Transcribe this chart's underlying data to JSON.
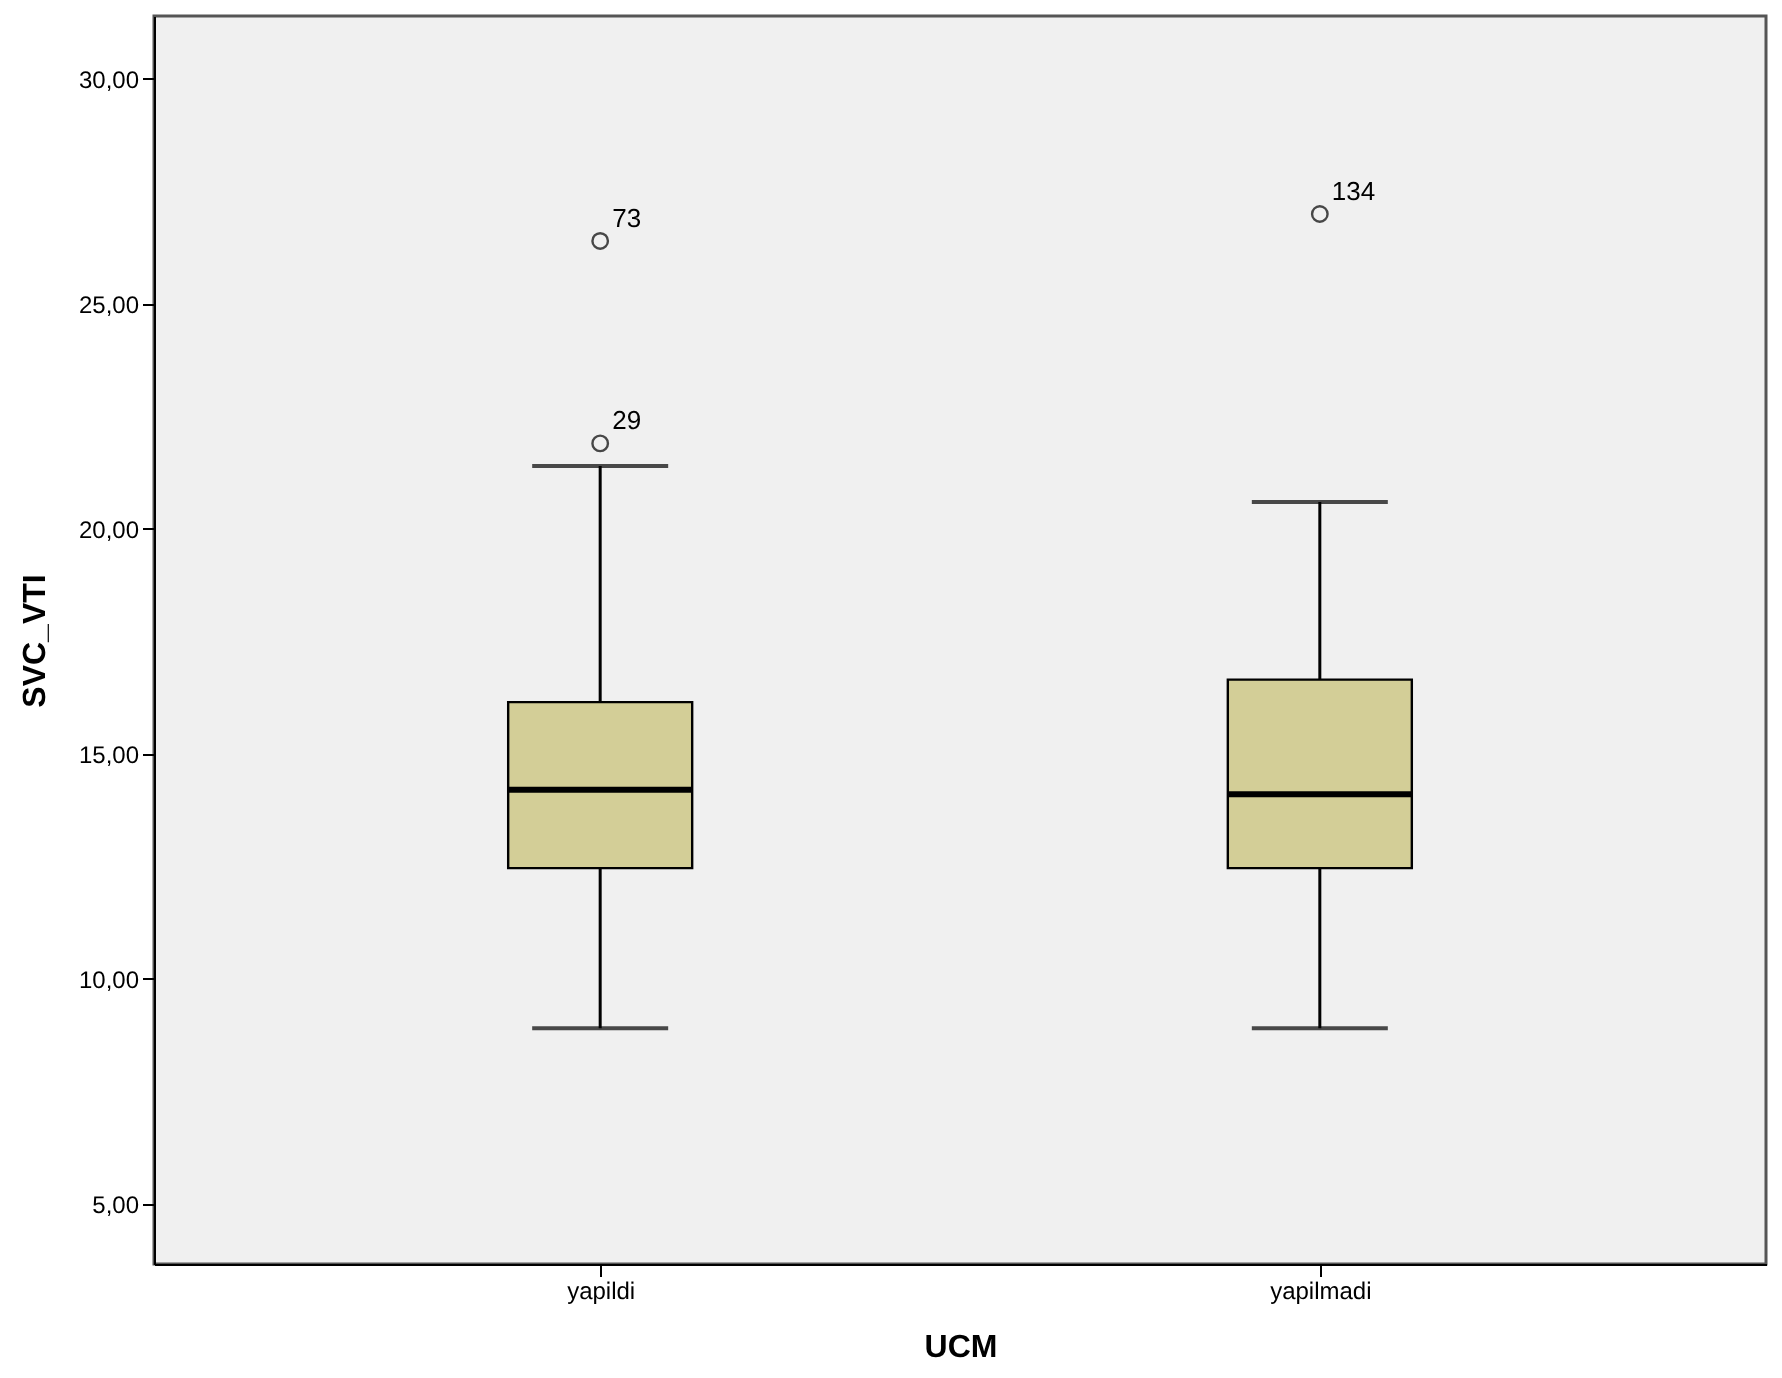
{
  "chart_data": {
    "type": "box",
    "xlabel": "UCM",
    "ylabel": "SVC_VTI",
    "categories": [
      "yapildi",
      "yapilmadi"
    ],
    "boxes": [
      {
        "low": 8.9,
        "q1": 12.46,
        "median": 14.2,
        "q3": 16.15,
        "high": 21.4,
        "outliers": [
          21.9,
          26.4
        ]
      },
      {
        "low": 8.9,
        "q1": 12.46,
        "median": 14.1,
        "q3": 16.65,
        "high": 20.6,
        "outliers": [
          27.0
        ]
      }
    ],
    "color": "#d3ce97",
    "ylim": [
      3.66,
      31.4
    ],
    "yticks": [
      {
        "value": 5,
        "label": "5,00"
      },
      {
        "value": 10,
        "label": "10,00"
      },
      {
        "value": 15,
        "label": "15,00"
      },
      {
        "value": 20,
        "label": "20,00"
      },
      {
        "value": 25,
        "label": "25,00"
      },
      {
        "value": 30,
        "label": "30,00"
      }
    ],
    "annotations": [
      "29",
      "73",
      "134"
    ],
    "marker": "circle"
  }
}
